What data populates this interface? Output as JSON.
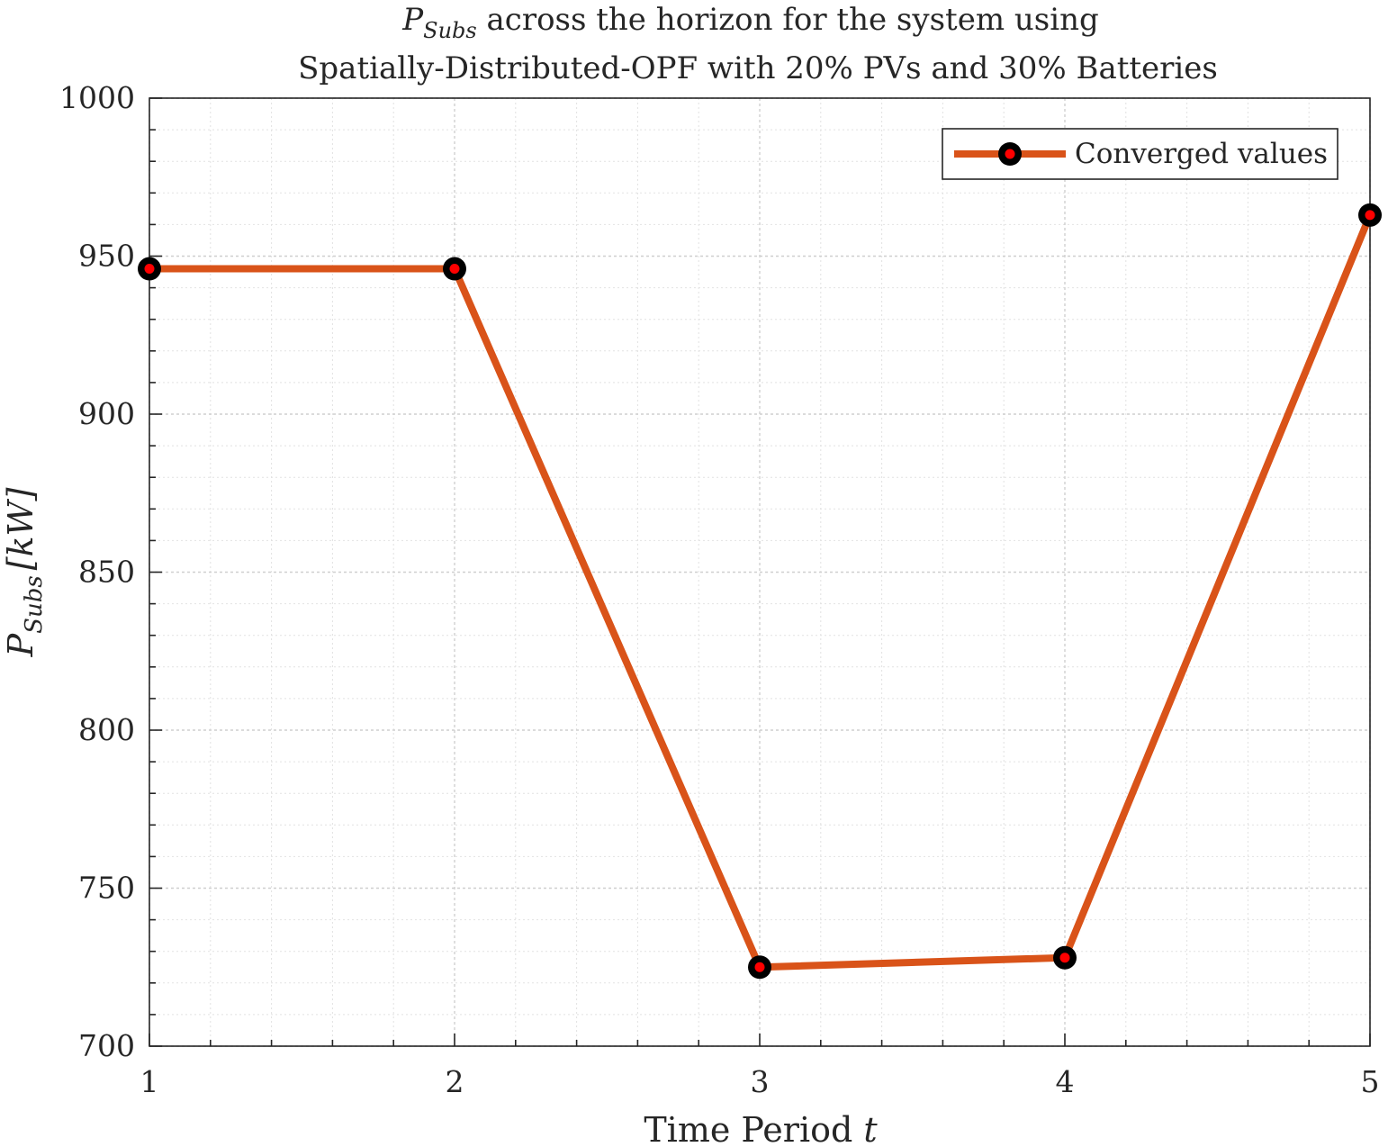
{
  "chart_data": {
    "type": "line",
    "title_line1_main": "P",
    "title_line1_sub": "Subs",
    "title_line1_rest": " across the horizon for the system using",
    "title_line2": "Spatially-Distributed-OPF with 20% PVs and 30% Batteries",
    "xlabel_text": "Time Period ",
    "xlabel_var": "t",
    "ylabel_main": "P",
    "ylabel_sub": "Subs",
    "ylabel_unit": "[kW]",
    "x": [
      1,
      2,
      3,
      4,
      5
    ],
    "xticks": [
      "1",
      "2",
      "3",
      "4",
      "5"
    ],
    "yticks": [
      "700",
      "750",
      "800",
      "850",
      "900",
      "950",
      "1000"
    ],
    "xlim": [
      1,
      5
    ],
    "ylim": [
      700,
      1000
    ],
    "grid": true,
    "minor_grid": true,
    "legend_position": "top-right",
    "series": [
      {
        "name": "Converged values",
        "values": [
          946,
          946,
          725,
          728,
          963
        ],
        "line_color": "#D95319",
        "marker_edge_color": "#000000",
        "marker_face_color": "#FF0000"
      }
    ]
  }
}
